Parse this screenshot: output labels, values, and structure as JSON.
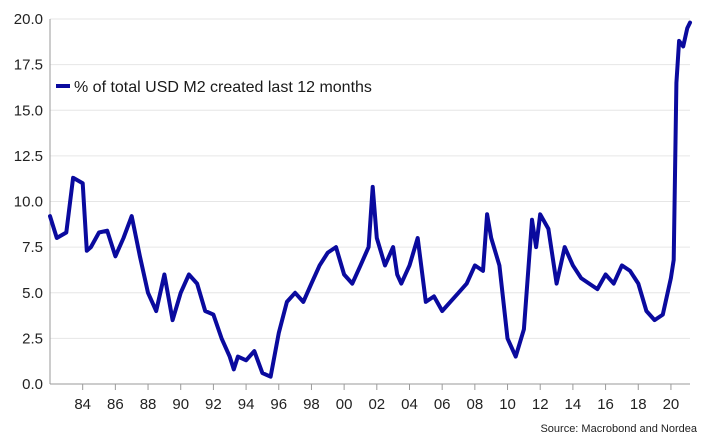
{
  "chart_data": {
    "type": "line",
    "title": "",
    "xlabel": "",
    "ylabel": "",
    "x_ticks": [
      "84",
      "86",
      "88",
      "90",
      "92",
      "94",
      "96",
      "98",
      "00",
      "02",
      "04",
      "06",
      "08",
      "10",
      "12",
      "14",
      "16",
      "18",
      "20"
    ],
    "y_ticks": [
      "0.0",
      "2.5",
      "5.0",
      "7.5",
      "10.0",
      "12.5",
      "15.0",
      "17.5",
      "20.0"
    ],
    "ylim": [
      0,
      20
    ],
    "xlim": [
      "1982-01",
      "2021-03"
    ],
    "grid": true,
    "legend_position": "top-left",
    "series": [
      {
        "name": "% of total USD M2 created last 12 months",
        "color": "#0a0a9e",
        "x": [
          "1982-01",
          "1982-06",
          "1983-01",
          "1983-06",
          "1984-01",
          "1984-04",
          "1984-07",
          "1985-01",
          "1985-07",
          "1986-01",
          "1986-07",
          "1987-01",
          "1987-07",
          "1988-01",
          "1988-07",
          "1989-01",
          "1989-07",
          "1990-01",
          "1990-07",
          "1991-01",
          "1991-07",
          "1992-01",
          "1992-07",
          "1993-01",
          "1993-04",
          "1993-07",
          "1994-01",
          "1994-07",
          "1995-01",
          "1995-07",
          "1996-01",
          "1996-07",
          "1997-01",
          "1997-07",
          "1998-01",
          "1998-07",
          "1999-01",
          "1999-07",
          "2000-01",
          "2000-07",
          "2001-01",
          "2001-07",
          "2001-10",
          "2002-01",
          "2002-07",
          "2003-01",
          "2003-04",
          "2003-07",
          "2004-01",
          "2004-07",
          "2005-01",
          "2005-07",
          "2006-01",
          "2006-07",
          "2007-01",
          "2007-07",
          "2008-01",
          "2008-07",
          "2008-10",
          "2009-01",
          "2009-07",
          "2010-01",
          "2010-07",
          "2011-01",
          "2011-07",
          "2011-10",
          "2012-01",
          "2012-07",
          "2013-01",
          "2013-07",
          "2014-01",
          "2014-07",
          "2015-01",
          "2015-07",
          "2016-01",
          "2016-07",
          "2017-01",
          "2017-07",
          "2018-01",
          "2018-07",
          "2019-01",
          "2019-07",
          "2020-01",
          "2020-03",
          "2020-05",
          "2020-07",
          "2020-10",
          "2021-01",
          "2021-03"
        ],
        "y": [
          9.2,
          8.0,
          8.3,
          11.3,
          11.0,
          7.3,
          7.5,
          8.3,
          8.4,
          7.0,
          8.0,
          9.2,
          7.0,
          5.0,
          4.0,
          6.0,
          3.5,
          5.0,
          6.0,
          5.5,
          4.0,
          3.8,
          2.5,
          1.5,
          0.8,
          1.5,
          1.3,
          1.8,
          0.6,
          0.4,
          2.8,
          4.5,
          5.0,
          4.5,
          5.5,
          6.5,
          7.2,
          7.5,
          6.0,
          5.5,
          6.5,
          7.5,
          10.8,
          8.0,
          6.5,
          7.5,
          6.0,
          5.5,
          6.5,
          8.0,
          4.5,
          4.8,
          4.0,
          4.5,
          5.0,
          5.5,
          6.5,
          6.2,
          9.3,
          8.0,
          6.5,
          2.5,
          1.5,
          3.0,
          9.0,
          7.5,
          9.3,
          8.5,
          5.5,
          7.5,
          6.5,
          5.8,
          5.5,
          5.2,
          6.0,
          5.5,
          6.5,
          6.2,
          5.5,
          4.0,
          3.5,
          3.8,
          5.8,
          6.8,
          16.5,
          18.8,
          18.5,
          19.5,
          19.8
        ]
      }
    ]
  },
  "source_text": "Source: Macrobond and Nordea"
}
